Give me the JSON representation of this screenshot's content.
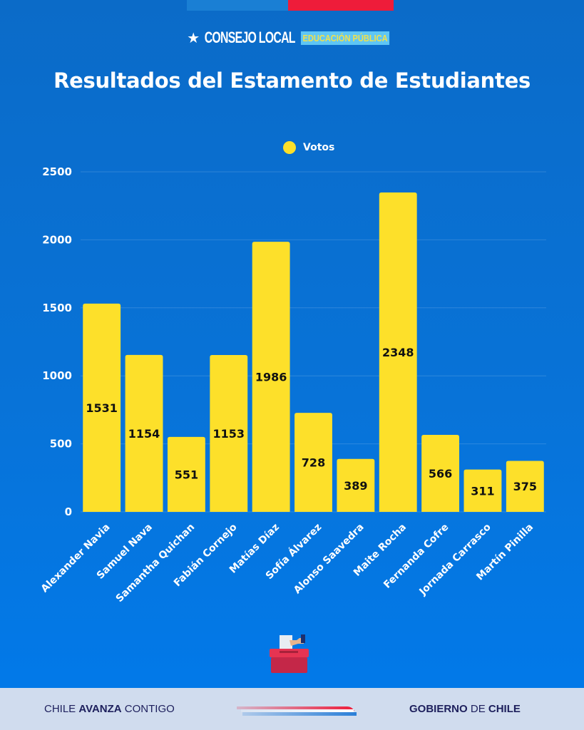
{
  "header": {
    "brand_name": "CONSEJO LOCAL",
    "brand_tag": "EDUCACIÓN PÚBLICA",
    "star_icon": "star-icon",
    "colors": {
      "stripe_blue": "#1a7fd4",
      "stripe_red": "#ee1c3a"
    }
  },
  "footer": {
    "left_part1": "CHILE ",
    "left_bold": "AVANZA",
    "left_part2": " CONTIGO",
    "right_bold1": "GOBIERNO",
    "right_mid": " DE ",
    "right_bold2": "CHILE"
  },
  "icons": {
    "ballot": "ballot-box-icon",
    "flag_stripes": "flag-stripes-icon"
  },
  "chart_data": {
    "type": "bar",
    "title": "Resultados del Estamento de Estudiantes",
    "xlabel": "",
    "ylabel": "",
    "legend": {
      "label": "Votos",
      "position": "top-center",
      "color": "#fde02a"
    },
    "categories": [
      "Alexander Navia",
      "Samuel Nava",
      "Samantha Quichan",
      "Fabián Cornejo",
      "Matías Díaz",
      "Sofía Álvarez",
      "Alonso Saavedra",
      "Maite Rocha",
      "Fernanda Cofre",
      "Jornada Carrasco",
      "Martín Pinilla"
    ],
    "series": [
      {
        "name": "Votos",
        "values": [
          1531,
          1154,
          551,
          1153,
          1986,
          728,
          389,
          2348,
          566,
          311,
          375
        ]
      }
    ],
    "yticks": [
      0,
      500,
      1000,
      1500,
      2000,
      2500
    ],
    "ylim": [
      0,
      2500
    ],
    "grid": true,
    "bar_color": "#fde02a",
    "value_label_color": "#111111"
  }
}
